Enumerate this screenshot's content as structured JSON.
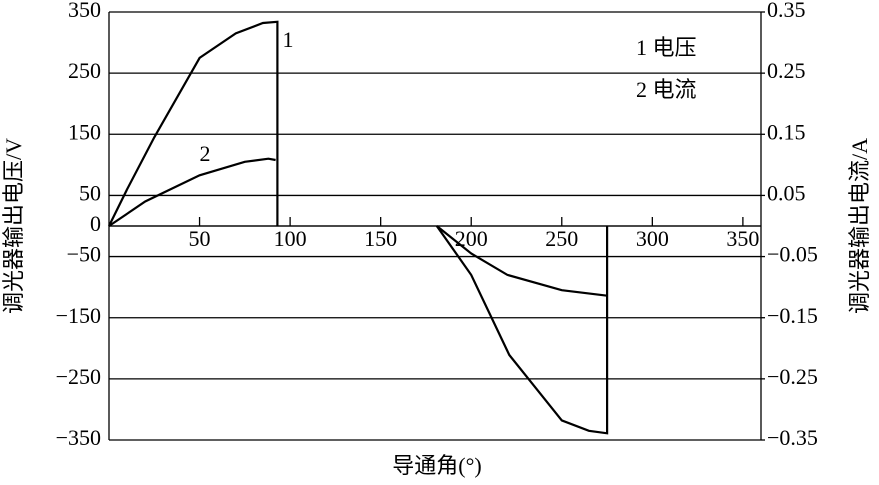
{
  "chart_data": {
    "type": "line",
    "x_label": "导通角(°)",
    "y_label": "调光器输出电压/V",
    "y2_label": "调光器输出电流/A",
    "annotations": [
      "1",
      "2"
    ],
    "xlim": [
      0,
      360
    ],
    "xticks": [
      50,
      100,
      150,
      200,
      250,
      300,
      350
    ],
    "ylim": [
      -350,
      350
    ],
    "yticks": [
      350,
      250,
      150,
      50,
      0,
      {
        "value": -50,
        "label": "−50"
      },
      {
        "value": -150,
        "label": "−150"
      },
      {
        "value": -250,
        "label": "−250"
      },
      {
        "value": -350,
        "label": "−350"
      }
    ],
    "y2lim": [
      -0.35,
      0.35
    ],
    "y2ticks": [
      0.35,
      0.25,
      0.15,
      0.05,
      {
        "value": -0.05,
        "label": "−0.05"
      },
      {
        "value": -0.15,
        "label": "−0.15"
      },
      {
        "value": -0.25,
        "label": "−0.25"
      },
      {
        "value": -0.35,
        "label": "−0.35"
      }
    ],
    "grid": true,
    "series": [
      {
        "name": "1 电压",
        "color": "#000000",
        "x": [
          0,
          10,
          25,
          50,
          70,
          85,
          93,
          93,
          null,
          181,
          200,
          221,
          250,
          265,
          275,
          275
        ],
        "values": [
          0,
          60,
          145,
          275,
          315,
          332,
          334,
          0,
          null,
          0,
          -80,
          -211,
          -318,
          -335,
          -339,
          0
        ]
      },
      {
        "name": "2 电流",
        "color": "#000000",
        "axis": "y2",
        "x": [
          0,
          20,
          50,
          75,
          88,
          92,
          null,
          181,
          200,
          220,
          250,
          275
        ],
        "values": [
          0,
          0.04,
          0.083,
          0.105,
          0.11,
          0.108,
          null,
          0,
          -0.045,
          -0.08,
          -0.105,
          -0.114
        ]
      }
    ]
  }
}
